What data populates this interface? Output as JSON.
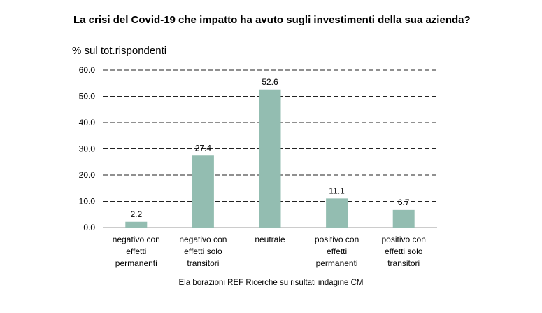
{
  "chart_data": {
    "type": "bar",
    "title": "La crisi del Covid-19 che impatto ha avuto sugli investimenti della sua azienda?",
    "ylabel": "% sul tot.rispondenti",
    "source": "Ela borazioni REF Ricerche su risultati indagine CM",
    "categories": [
      [
        "negativo con",
        "effetti",
        "permanenti"
      ],
      [
        "negativo con",
        "effetti solo",
        "transitori"
      ],
      [
        "neutrale"
      ],
      [
        "positivo con",
        "effetti",
        "permanenti"
      ],
      [
        "positivo con",
        "effetti solo",
        "transitori"
      ]
    ],
    "values": [
      2.2,
      27.4,
      52.6,
      11.1,
      6.7
    ],
    "value_labels": [
      "2.2",
      "27.4",
      "52.6",
      "11.1",
      "6.7"
    ],
    "ylim": [
      0,
      60
    ],
    "y_ticks": [
      "0.0",
      "10.0",
      "20.0",
      "30.0",
      "40.0",
      "50.0",
      "60.0"
    ],
    "grid": "dashed horizontal",
    "bar_color": "#93bdb1",
    "legend": "none"
  }
}
